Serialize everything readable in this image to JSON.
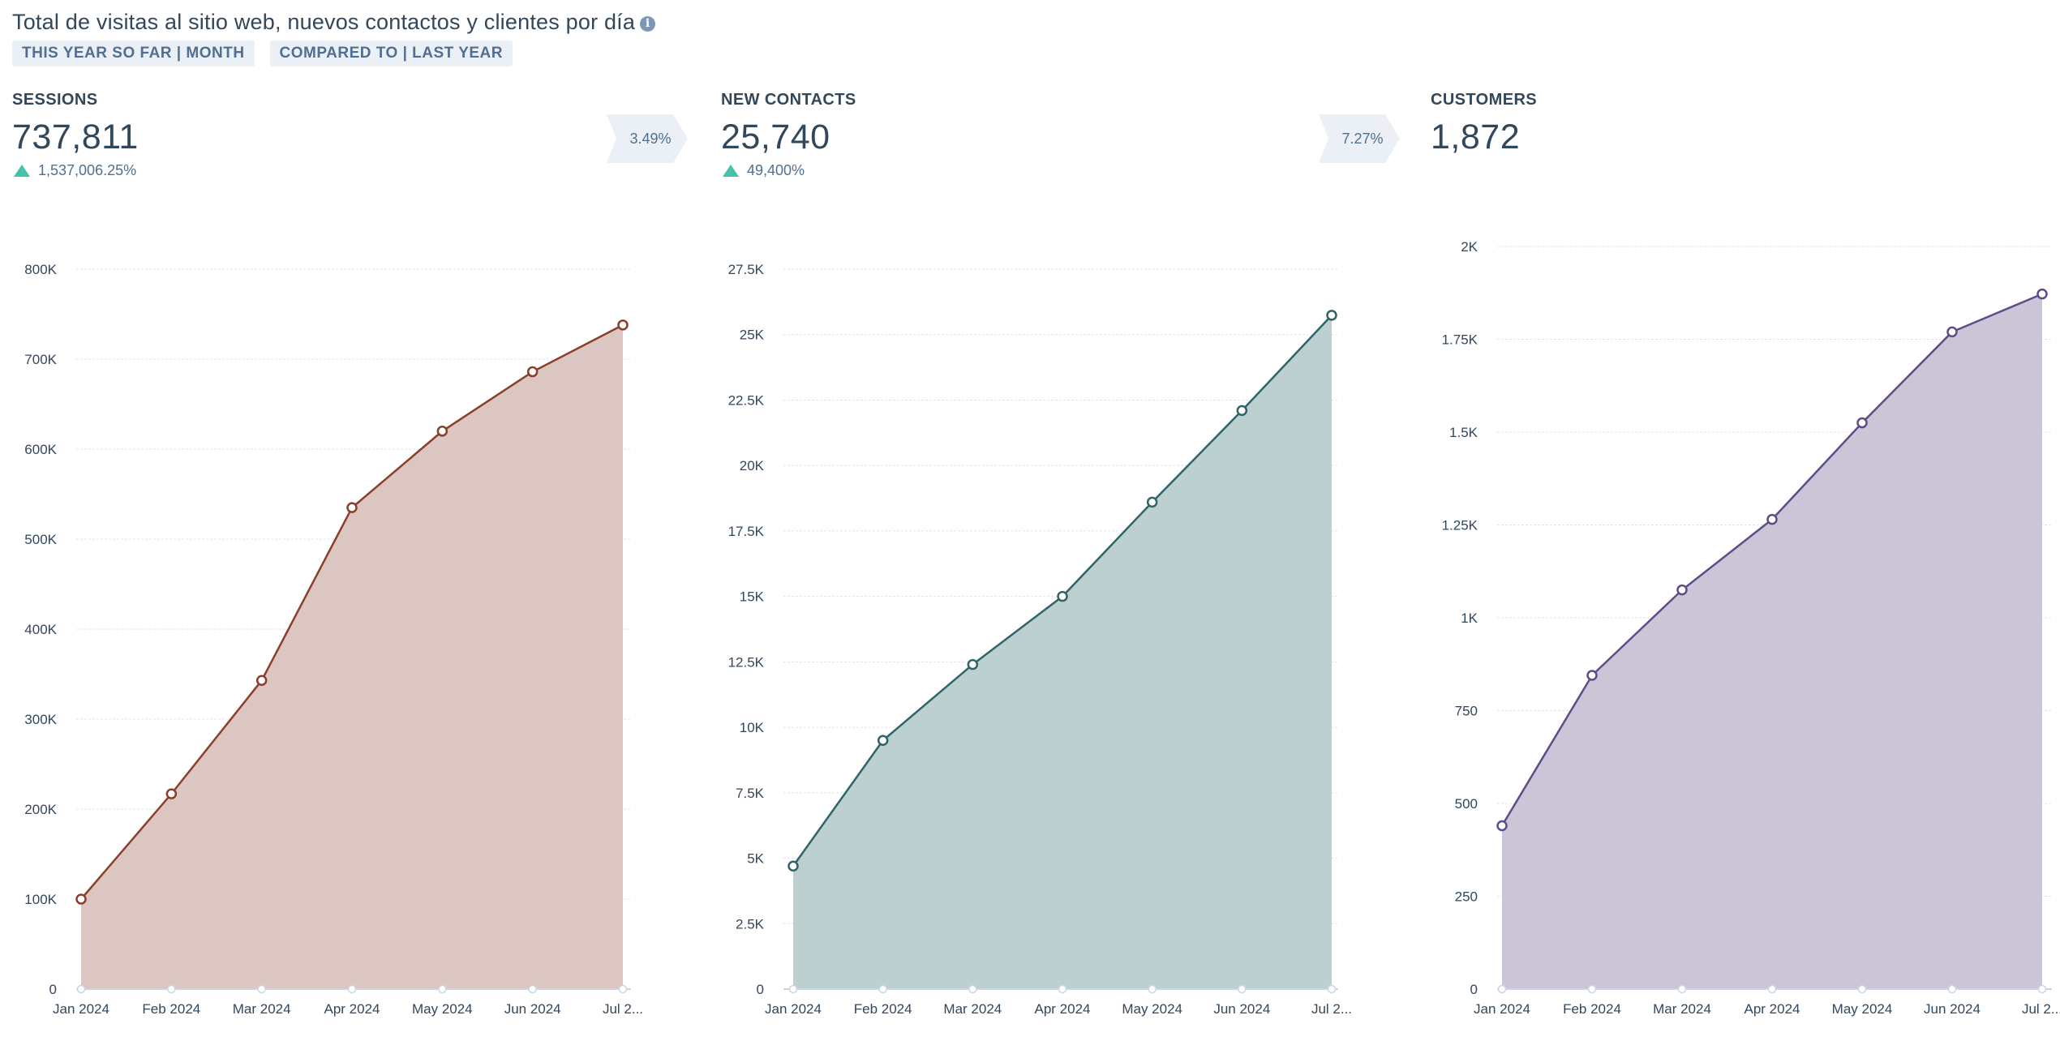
{
  "report": {
    "title": "Total de visitas al sitio web, nuevos contactos y clientes por día",
    "info_icon": "info-icon",
    "filters": [
      "THIS YEAR SO FAR | MONTH",
      "COMPARED TO | LAST YEAR"
    ]
  },
  "metrics": [
    {
      "label": "SESSIONS",
      "value": "737,811",
      "change": "1,537,006.25%",
      "change_direction": "up"
    },
    {
      "label": "NEW CONTACTS",
      "value": "25,740",
      "change": "49,400%",
      "change_direction": "up"
    },
    {
      "label": "CUSTOMERS",
      "value": "1,872"
    }
  ],
  "conversions": [
    "3.49%",
    "7.27%"
  ],
  "colors": {
    "up_arrow": "#45c2a7",
    "text": "#33475b"
  },
  "chart_data": [
    {
      "type": "area",
      "series_key": "sessions",
      "categories": [
        "Jan 2024",
        "Feb 2024",
        "Mar 2024",
        "Apr 2024",
        "May 2024",
        "Jun 2024",
        "Jul 2..."
      ],
      "series": [
        {
          "values": [
            100000,
            217000,
            343000,
            535000,
            620000,
            686000,
            738000
          ]
        }
      ],
      "ylim": [
        0,
        800000
      ],
      "yticks": [
        0,
        100000,
        200000,
        300000,
        400000,
        500000,
        600000,
        700000,
        800000
      ],
      "ytick_labels": [
        "0",
        "100K",
        "200K",
        "300K",
        "400K",
        "500K",
        "600K",
        "700K",
        "800K"
      ],
      "grid": true,
      "line_color": "#8a3f2a",
      "fill_color": "#dbc6c2"
    },
    {
      "type": "area",
      "series_key": "new_contacts",
      "categories": [
        "Jan 2024",
        "Feb 2024",
        "Mar 2024",
        "Apr 2024",
        "May 2024",
        "Jun 2024",
        "Jul 2..."
      ],
      "series": [
        {
          "values": [
            4700,
            9500,
            12400,
            15000,
            18600,
            22100,
            25740
          ]
        }
      ],
      "ylim": [
        0,
        27500
      ],
      "yticks": [
        0,
        2500,
        5000,
        7500,
        10000,
        12500,
        15000,
        17500,
        20000,
        22500,
        25000,
        27500
      ],
      "ytick_labels": [
        "0",
        "2.5K",
        "5K",
        "7.5K",
        "10K",
        "12.5K",
        "15K",
        "17.5K",
        "20K",
        "22.5K",
        "25K",
        "27.5K"
      ],
      "grid": true,
      "line_color": "#2f6469",
      "fill_color": "#bcd0d0"
    },
    {
      "type": "area",
      "series_key": "customers",
      "categories": [
        "Jan 2024",
        "Feb 2024",
        "Mar 2024",
        "Apr 2024",
        "May 2024",
        "Jun 2024",
        "Jul 2..."
      ],
      "series": [
        {
          "values": [
            440,
            845,
            1075,
            1265,
            1525,
            1770,
            1872
          ]
        }
      ],
      "ylim": [
        0,
        2000
      ],
      "yticks": [
        0,
        250,
        500,
        750,
        1000,
        1250,
        1500,
        1750,
        2000
      ],
      "ytick_labels": [
        "0",
        "250",
        "500",
        "750",
        "1K",
        "1.25K",
        "1.5K",
        "1.75K",
        "2K"
      ],
      "grid": true,
      "line_color": "#5e4c87",
      "fill_color": "#ccc5d8"
    }
  ]
}
